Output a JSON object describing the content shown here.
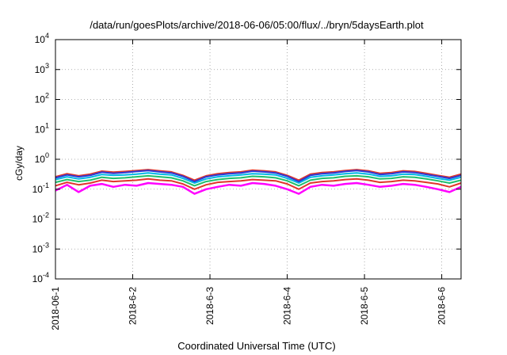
{
  "chart_data": {
    "type": "line",
    "title": "/data/run/goesPlots/archive/2018-06-06/05:00/flux/../bryn/5daysEarth.plot",
    "xlabel": "Coordinated Universal Time (UTC)",
    "ylabel": "cGy/day",
    "yscale": "log",
    "ylim": [
      0.0001,
      10000
    ],
    "xlim": [
      0,
      5.25
    ],
    "grid": true,
    "y_ticks": [
      {
        "base": "10",
        "exp": "-4"
      },
      {
        "base": "10",
        "exp": "-3"
      },
      {
        "base": "10",
        "exp": "-2"
      },
      {
        "base": "10",
        "exp": "-1"
      },
      {
        "base": "10",
        "exp": "0"
      },
      {
        "base": "10",
        "exp": "1"
      },
      {
        "base": "10",
        "exp": "2"
      },
      {
        "base": "10",
        "exp": "3"
      },
      {
        "base": "10",
        "exp": "4"
      }
    ],
    "x_ticks": [
      "2018-06-1",
      "2018-6-2",
      "2018-6-3",
      "2018-6-4",
      "2018-6-5",
      "2018-6-6"
    ],
    "x_tick_values": [
      0,
      1,
      2,
      3,
      4,
      5
    ],
    "series": [
      {
        "color": "#ff00ff",
        "values": [
          0.09,
          0.14,
          0.08,
          0.13,
          0.15,
          0.12,
          0.14,
          0.13,
          0.16,
          0.15,
          0.14,
          0.12,
          0.07,
          0.1,
          0.12,
          0.14,
          0.13,
          0.16,
          0.15,
          0.13,
          0.1,
          0.07,
          0.12,
          0.14,
          0.13,
          0.15,
          0.16,
          0.14,
          0.12,
          0.13,
          0.15,
          0.14,
          0.12,
          0.1,
          0.08,
          0.12
        ]
      },
      {
        "color": "#e0342a",
        "values": [
          0.13,
          0.17,
          0.14,
          0.16,
          0.2,
          0.18,
          0.19,
          0.2,
          0.22,
          0.2,
          0.19,
          0.15,
          0.1,
          0.14,
          0.17,
          0.18,
          0.19,
          0.21,
          0.2,
          0.19,
          0.15,
          0.1,
          0.16,
          0.18,
          0.19,
          0.21,
          0.22,
          0.2,
          0.17,
          0.18,
          0.2,
          0.19,
          0.17,
          0.15,
          0.12,
          0.16
        ]
      },
      {
        "color": "#1fbf6a",
        "values": [
          0.17,
          0.21,
          0.18,
          0.2,
          0.25,
          0.23,
          0.24,
          0.26,
          0.28,
          0.26,
          0.24,
          0.19,
          0.13,
          0.18,
          0.21,
          0.23,
          0.24,
          0.27,
          0.26,
          0.24,
          0.19,
          0.13,
          0.2,
          0.23,
          0.24,
          0.27,
          0.28,
          0.26,
          0.22,
          0.23,
          0.26,
          0.25,
          0.22,
          0.19,
          0.16,
          0.2
        ]
      },
      {
        "color": "#00b8e6",
        "values": [
          0.21,
          0.26,
          0.22,
          0.25,
          0.31,
          0.29,
          0.3,
          0.32,
          0.35,
          0.32,
          0.3,
          0.23,
          0.16,
          0.22,
          0.26,
          0.28,
          0.3,
          0.33,
          0.32,
          0.3,
          0.23,
          0.16,
          0.25,
          0.28,
          0.3,
          0.33,
          0.35,
          0.32,
          0.27,
          0.28,
          0.32,
          0.31,
          0.27,
          0.23,
          0.2,
          0.25
        ]
      },
      {
        "color": "#e0342a",
        "values": [
          0.26,
          0.33,
          0.28,
          0.32,
          0.4,
          0.37,
          0.39,
          0.42,
          0.45,
          0.41,
          0.38,
          0.29,
          0.2,
          0.28,
          0.33,
          0.36,
          0.38,
          0.43,
          0.41,
          0.38,
          0.29,
          0.2,
          0.32,
          0.36,
          0.38,
          0.42,
          0.45,
          0.41,
          0.34,
          0.36,
          0.41,
          0.39,
          0.34,
          0.29,
          0.25,
          0.32
        ]
      },
      {
        "color": "#2a3ad6",
        "values": [
          0.24,
          0.3,
          0.26,
          0.29,
          0.37,
          0.34,
          0.36,
          0.39,
          0.42,
          0.38,
          0.35,
          0.27,
          0.18,
          0.26,
          0.3,
          0.33,
          0.35,
          0.4,
          0.38,
          0.35,
          0.27,
          0.18,
          0.29,
          0.33,
          0.35,
          0.39,
          0.42,
          0.38,
          0.31,
          0.33,
          0.38,
          0.36,
          0.31,
          0.27,
          0.23,
          0.29
        ]
      }
    ]
  }
}
